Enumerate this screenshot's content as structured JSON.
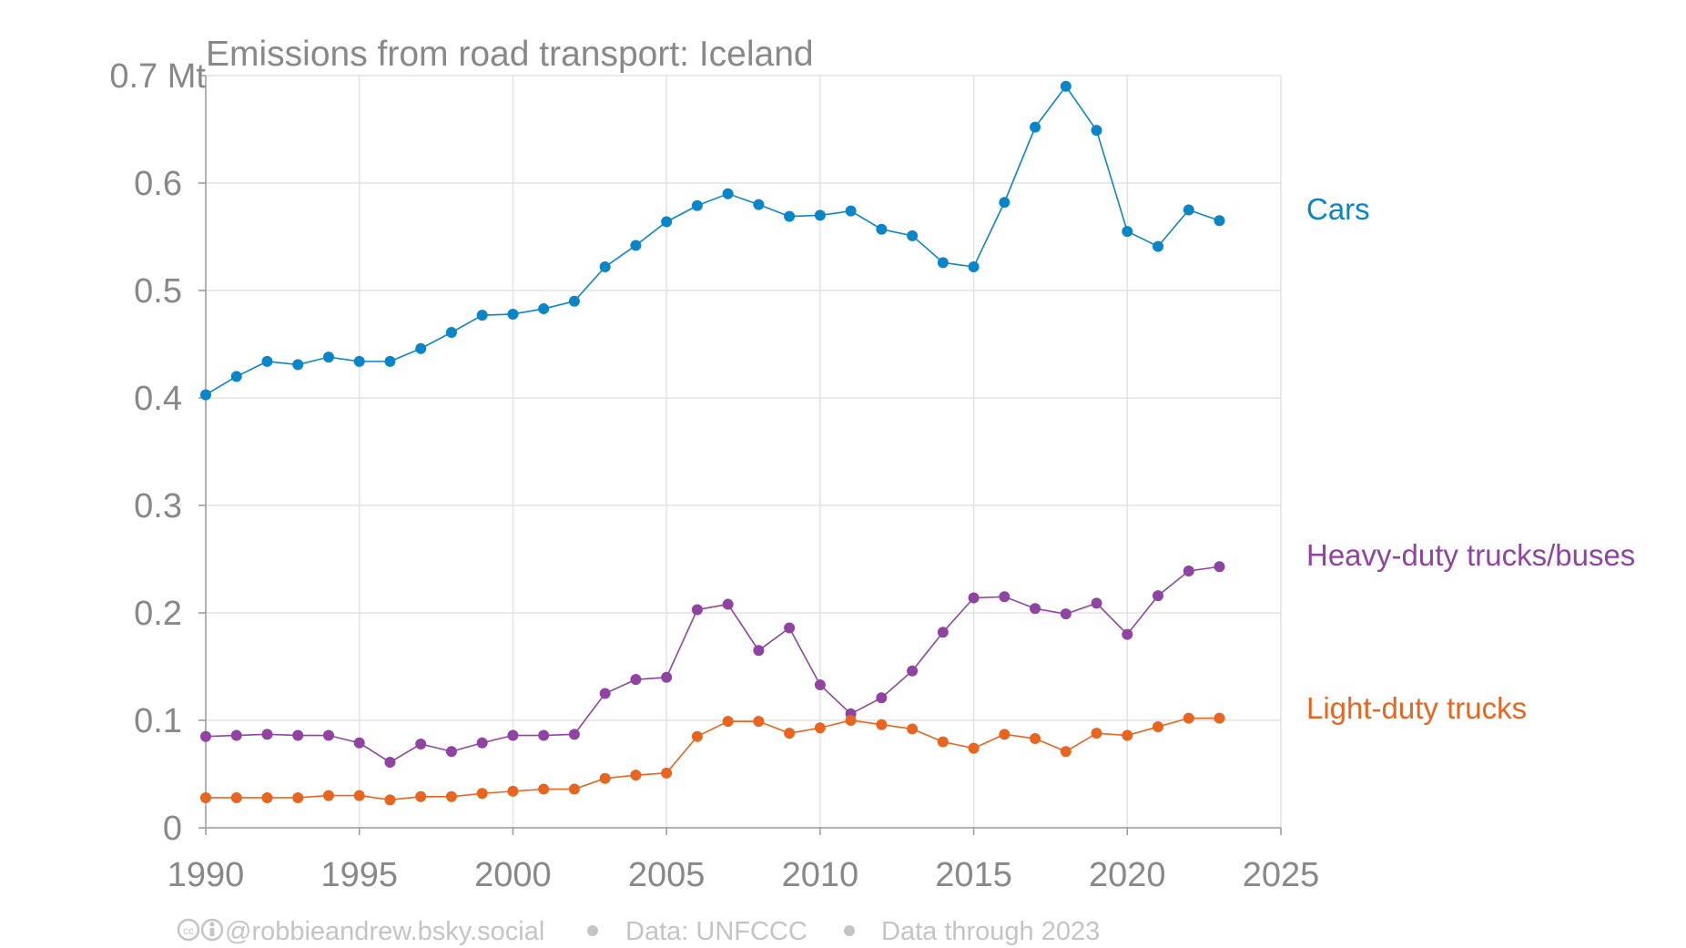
{
  "chart_data": {
    "type": "line",
    "title": "Emissions from road transport: Iceland",
    "ylabel_unit": "Mt",
    "x": [
      1990,
      1991,
      1992,
      1993,
      1994,
      1995,
      1996,
      1997,
      1998,
      1999,
      2000,
      2001,
      2002,
      2003,
      2004,
      2005,
      2006,
      2007,
      2008,
      2009,
      2010,
      2011,
      2012,
      2013,
      2014,
      2015,
      2016,
      2017,
      2018,
      2019,
      2020,
      2021,
      2022,
      2023
    ],
    "xlim": [
      1990,
      2025
    ],
    "ylim": [
      0,
      0.7
    ],
    "xticks": [
      "1990",
      "1995",
      "2000",
      "2005",
      "2010",
      "2015",
      "2020",
      "2025"
    ],
    "yticks": [
      "0",
      "0.1",
      "0.2",
      "0.3",
      "0.4",
      "0.5",
      "0.6",
      "0.7 Mt"
    ],
    "grid": true,
    "legend": "direct-labels-right",
    "series": [
      {
        "name": "Cars",
        "color": "#0a85c8",
        "values": [
          0.403,
          0.42,
          0.434,
          0.431,
          0.438,
          0.434,
          0.434,
          0.446,
          0.461,
          0.477,
          0.478,
          0.483,
          0.49,
          0.522,
          0.542,
          0.564,
          0.579,
          0.59,
          0.58,
          0.569,
          0.57,
          0.574,
          0.557,
          0.551,
          0.526,
          0.522,
          0.582,
          0.652,
          0.69,
          0.649,
          0.555,
          0.541,
          0.575,
          0.565
        ]
      },
      {
        "name": "Heavy-duty trucks/buses",
        "color": "#8e44a0",
        "values": [
          0.085,
          0.086,
          0.087,
          0.086,
          0.086,
          0.079,
          0.061,
          0.078,
          0.071,
          0.079,
          0.086,
          0.086,
          0.087,
          0.125,
          0.138,
          0.14,
          0.203,
          0.208,
          0.165,
          0.186,
          0.133,
          0.106,
          0.121,
          0.146,
          0.182,
          0.214,
          0.215,
          0.204,
          0.199,
          0.209,
          0.18,
          0.216,
          0.239,
          0.243
        ]
      },
      {
        "name": "Light-duty trucks",
        "color": "#e8651f",
        "values": [
          0.028,
          0.028,
          0.028,
          0.028,
          0.03,
          0.03,
          0.026,
          0.029,
          0.029,
          0.032,
          0.034,
          0.036,
          0.036,
          0.046,
          0.049,
          0.051,
          0.085,
          0.099,
          0.099,
          0.088,
          0.093,
          0.1,
          0.096,
          0.092,
          0.08,
          0.074,
          0.087,
          0.083,
          0.071,
          0.088,
          0.086,
          0.094,
          0.102,
          0.102
        ]
      }
    ]
  },
  "footer": {
    "license_icon": "cc-by-icon",
    "author": "@robbieandrew.bsky.social",
    "source": "Data: UNFCCC",
    "through": "Data through 2023"
  }
}
